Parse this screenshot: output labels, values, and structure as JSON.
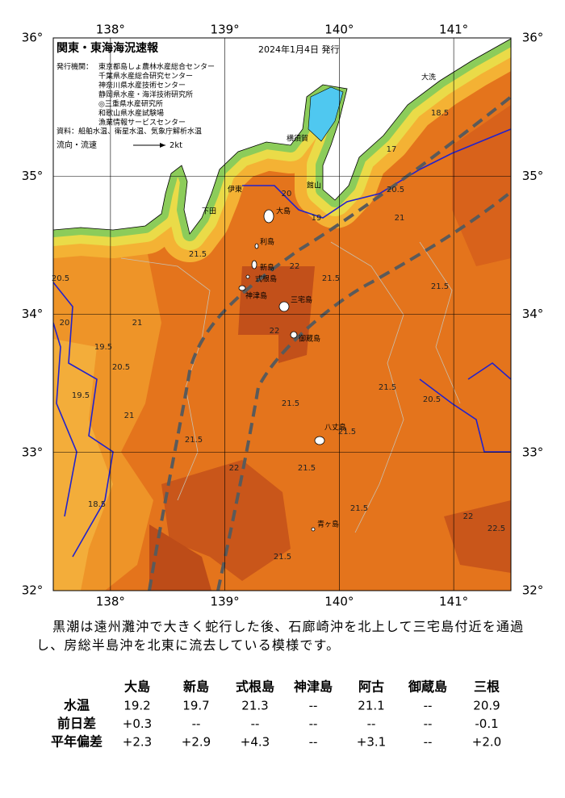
{
  "header": {
    "title": "関東・東海海況速報",
    "date": "2024年1月4日 発行",
    "issuer_label": "発行機関：",
    "issuers": [
      "東京都島しょ農林水産総合センター",
      "千葉県水産総合研究センター",
      "神奈川県水産技術センター",
      "静岡県水産・海洋技術研究所",
      "◎三重県水産研究所",
      "和歌山県水産試験場",
      "漁業情報サービスセンター"
    ],
    "source": "資料：船舶水温、衛星水温、気象庁解析水温",
    "current_label": "流向・流速",
    "current_scale": "2kt"
  },
  "map": {
    "lon_ticks": [
      {
        "value": 138,
        "label": "138°"
      },
      {
        "value": 139,
        "label": "139°"
      },
      {
        "value": 140,
        "label": "140°"
      },
      {
        "value": 141,
        "label": "141°"
      }
    ],
    "lat_ticks": [
      {
        "value": 32,
        "label": "32°"
      },
      {
        "value": 33,
        "label": "33°"
      },
      {
        "value": 34,
        "label": "34°"
      },
      {
        "value": 35,
        "label": "35°"
      },
      {
        "value": 36,
        "label": "36°"
      }
    ],
    "islands": [
      "大島",
      "利島",
      "新島",
      "式根島",
      "神津島",
      "三宅島",
      "御蔵島",
      "八丈島",
      "青ヶ島"
    ],
    "places": [
      "横須賀",
      "館山",
      "下田",
      "伊東",
      "大洗"
    ],
    "isotherm_labels": [
      "21.5",
      "20.5",
      "20",
      "21",
      "19.5",
      "20.5",
      "19.5",
      "21",
      "21.5",
      "18.5",
      "22",
      "21.5",
      "21.5",
      "21.5",
      "21.5",
      "21.5",
      "22",
      "21.5",
      "21.5",
      "21",
      "20.5",
      "19",
      "20",
      "22",
      "22.5",
      "22",
      "20.5",
      "21.5",
      "18.5",
      "17"
    ]
  },
  "summary": "黒潮は遠州灘沖で大きく蛇行した後、石廊崎沖を北上して三宅島付近を通過し、房総半島沖を北東に流去している模様です。",
  "table": {
    "columns": [
      "大島",
      "新島",
      "式根島",
      "神津島",
      "阿古",
      "御蔵島",
      "三根"
    ],
    "rows": [
      {
        "label": "水温",
        "cells": [
          "19.2",
          "19.7",
          "21.3",
          "--",
          "21.1",
          "--",
          "20.9"
        ]
      },
      {
        "label": "前日差",
        "cells": [
          "+0.3",
          "--",
          "--",
          "--",
          "--",
          "--",
          "-0.1"
        ]
      },
      {
        "label": "平年偏差",
        "cells": [
          "+2.3",
          "+2.9",
          "+4.3",
          "--",
          "+3.1",
          "--",
          "+2.0"
        ]
      }
    ]
  }
}
